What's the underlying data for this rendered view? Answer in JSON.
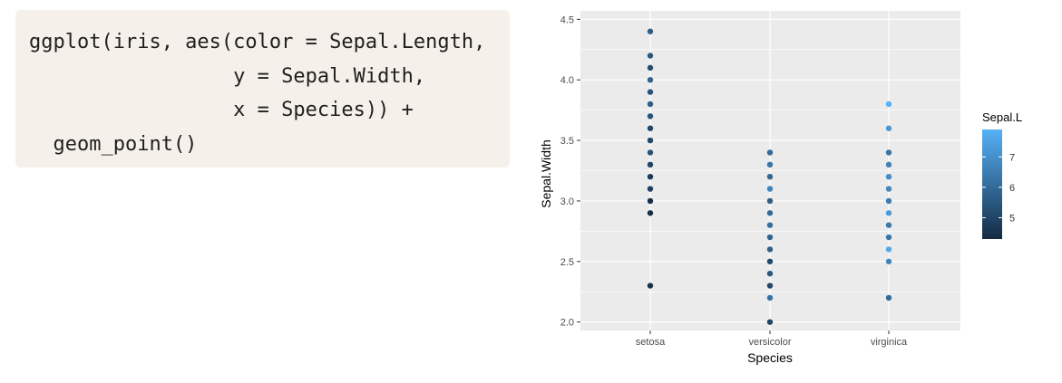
{
  "code": {
    "lines": [
      "ggplot(iris, aes(color = Sepal.Length,",
      "                 y = Sepal.Width,",
      "                 x = Species)) +",
      "  geom_point()"
    ]
  },
  "colors": {
    "panel_bg": "#ebebeb",
    "grid": "#ffffff",
    "low": "#132b43",
    "high": "#56b1f7"
  },
  "chart_data": {
    "type": "scatter",
    "xlabel": "Species",
    "ylabel": "Sepal.Width",
    "categories": [
      "setosa",
      "versicolor",
      "virginica"
    ],
    "ylim": [
      1.93,
      4.57
    ],
    "yticks": [
      2.0,
      2.5,
      3.0,
      3.5,
      4.0,
      4.5
    ],
    "ytick_labels": [
      "2.0",
      "2.5",
      "3.0",
      "3.5",
      "4.0",
      "4.5"
    ],
    "color_scale": {
      "name": "Sepal.L",
      "min": 4.3,
      "max": 7.9,
      "breaks": [
        5,
        6,
        7
      ],
      "low": "#132b43",
      "high": "#56b1f7"
    },
    "points": [
      {
        "x": "setosa",
        "y": 4.4,
        "color": 5.7
      },
      {
        "x": "setosa",
        "y": 4.2,
        "color": 5.5
      },
      {
        "x": "setosa",
        "y": 4.1,
        "color": 5.2
      },
      {
        "x": "setosa",
        "y": 4.0,
        "color": 5.8
      },
      {
        "x": "setosa",
        "y": 3.9,
        "color": 5.4
      },
      {
        "x": "setosa",
        "y": 3.8,
        "color": 5.7
      },
      {
        "x": "setosa",
        "y": 3.7,
        "color": 5.4
      },
      {
        "x": "setosa",
        "y": 3.6,
        "color": 5.0
      },
      {
        "x": "setosa",
        "y": 3.5,
        "color": 5.1
      },
      {
        "x": "setosa",
        "y": 3.4,
        "color": 5.4
      },
      {
        "x": "setosa",
        "y": 3.3,
        "color": 5.0
      },
      {
        "x": "setosa",
        "y": 3.2,
        "color": 4.7
      },
      {
        "x": "setosa",
        "y": 3.1,
        "color": 4.9
      },
      {
        "x": "setosa",
        "y": 3.0,
        "color": 4.4
      },
      {
        "x": "setosa",
        "y": 2.9,
        "color": 4.4
      },
      {
        "x": "setosa",
        "y": 2.3,
        "color": 4.5
      },
      {
        "x": "versicolor",
        "y": 3.4,
        "color": 6.0
      },
      {
        "x": "versicolor",
        "y": 3.3,
        "color": 6.3
      },
      {
        "x": "versicolor",
        "y": 3.2,
        "color": 5.9
      },
      {
        "x": "versicolor",
        "y": 3.1,
        "color": 6.7
      },
      {
        "x": "versicolor",
        "y": 3.0,
        "color": 5.7
      },
      {
        "x": "versicolor",
        "y": 2.9,
        "color": 6.0
      },
      {
        "x": "versicolor",
        "y": 2.8,
        "color": 6.1
      },
      {
        "x": "versicolor",
        "y": 2.7,
        "color": 5.8
      },
      {
        "x": "versicolor",
        "y": 2.6,
        "color": 5.7
      },
      {
        "x": "versicolor",
        "y": 2.5,
        "color": 5.1
      },
      {
        "x": "versicolor",
        "y": 2.4,
        "color": 5.5
      },
      {
        "x": "versicolor",
        "y": 2.3,
        "color": 5.0
      },
      {
        "x": "versicolor",
        "y": 2.2,
        "color": 6.2
      },
      {
        "x": "versicolor",
        "y": 2.0,
        "color": 5.0
      },
      {
        "x": "virginica",
        "y": 3.8,
        "color": 7.9
      },
      {
        "x": "virginica",
        "y": 3.6,
        "color": 7.2
      },
      {
        "x": "virginica",
        "y": 3.4,
        "color": 6.3
      },
      {
        "x": "virginica",
        "y": 3.3,
        "color": 6.7
      },
      {
        "x": "virginica",
        "y": 3.2,
        "color": 6.9
      },
      {
        "x": "virginica",
        "y": 3.1,
        "color": 6.8
      },
      {
        "x": "virginica",
        "y": 3.0,
        "color": 6.5
      },
      {
        "x": "virginica",
        "y": 2.9,
        "color": 7.3
      },
      {
        "x": "virginica",
        "y": 2.8,
        "color": 6.4
      },
      {
        "x": "virginica",
        "y": 2.7,
        "color": 6.3
      },
      {
        "x": "virginica",
        "y": 2.6,
        "color": 7.7
      },
      {
        "x": "virginica",
        "y": 2.5,
        "color": 6.7
      },
      {
        "x": "virginica",
        "y": 2.2,
        "color": 6.0
      }
    ]
  }
}
